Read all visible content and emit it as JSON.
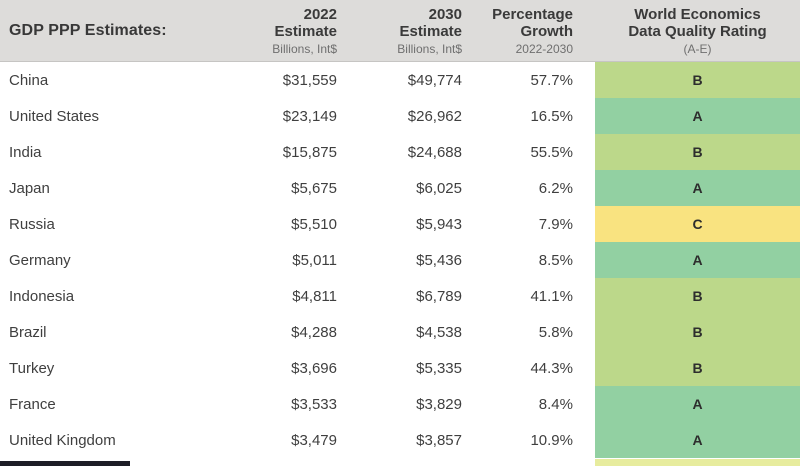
{
  "header": {
    "title": "GDP PPP Estimates:",
    "cols": {
      "est2022": {
        "line1": "2022",
        "line2": "Estimate",
        "sub": "Billions, Int$"
      },
      "est2030": {
        "line1": "2030",
        "line2": "Estimate",
        "sub": "Billions, Int$"
      },
      "growth": {
        "line1": "Percentage",
        "line2": "Growth",
        "sub": "2022-2030"
      },
      "rating": {
        "line1": "World Economics",
        "line2": "Data Quality Rating",
        "sub": "(A-E)"
      }
    }
  },
  "rows": [
    {
      "country": "China",
      "est_2022": "$31,559",
      "est_2030": "$49,774",
      "growth": "57.7%",
      "rating": "B"
    },
    {
      "country": "United States",
      "est_2022": "$23,149",
      "est_2030": "$26,962",
      "growth": "16.5%",
      "rating": "A"
    },
    {
      "country": "India",
      "est_2022": "$15,875",
      "est_2030": "$24,688",
      "growth": "55.5%",
      "rating": "B"
    },
    {
      "country": "Japan",
      "est_2022": "$5,675",
      "est_2030": "$6,025",
      "growth": "6.2%",
      "rating": "A"
    },
    {
      "country": "Russia",
      "est_2022": "$5,510",
      "est_2030": "$5,943",
      "growth": "7.9%",
      "rating": "C"
    },
    {
      "country": "Germany",
      "est_2022": "$5,011",
      "est_2030": "$5,436",
      "growth": "8.5%",
      "rating": "A"
    },
    {
      "country": "Indonesia",
      "est_2022": "$4,811",
      "est_2030": "$6,789",
      "growth": "41.1%",
      "rating": "B"
    },
    {
      "country": "Brazil",
      "est_2022": "$4,288",
      "est_2030": "$4,538",
      "growth": "5.8%",
      "rating": "B"
    },
    {
      "country": "Turkey",
      "est_2022": "$3,696",
      "est_2030": "$5,335",
      "growth": "44.3%",
      "rating": "B"
    },
    {
      "country": "France",
      "est_2022": "$3,533",
      "est_2030": "$3,829",
      "growth": "8.4%",
      "rating": "A"
    },
    {
      "country": "United Kingdom",
      "est_2022": "$3,479",
      "est_2030": "$3,857",
      "growth": "10.9%",
      "rating": "A"
    }
  ],
  "colors": {
    "header_bg": "#dddcda",
    "rating_A": "#92d0a2",
    "rating_B": "#bcd88a",
    "rating_C": "#f9e380",
    "partial_row": "#e7ec9e",
    "footer_bar": "#1d1d26"
  }
}
